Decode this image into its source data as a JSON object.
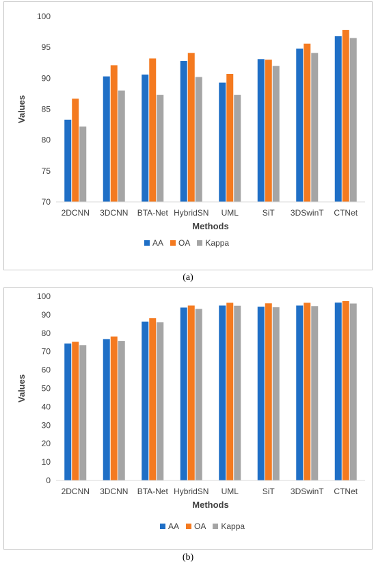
{
  "colors": {
    "AA": "#1f6fc6",
    "OA": "#f47a20",
    "Kappa": "#a5a5a5"
  },
  "captions": {
    "a": "(a)",
    "b": "(b)"
  },
  "chart_data": [
    {
      "type": "bar",
      "categories": [
        "2DCNN",
        "3DCNN",
        "BTA-Net",
        "HybridSN",
        "UML",
        "SiT",
        "3DSwinT",
        "CTNet"
      ],
      "series": [
        {
          "name": "AA",
          "values": [
            83.3,
            90.3,
            90.6,
            92.8,
            89.3,
            93.1,
            94.8,
            96.8
          ]
        },
        {
          "name": "OA",
          "values": [
            86.7,
            92.1,
            93.2,
            94.1,
            90.7,
            93.0,
            95.6,
            97.8
          ]
        },
        {
          "name": "Kappa",
          "values": [
            82.2,
            88.0,
            87.3,
            90.2,
            87.3,
            92.0,
            94.1,
            96.5
          ]
        }
      ],
      "xlabel": "Methods",
      "ylabel": "Values",
      "ylim": [
        70,
        100
      ],
      "yticks": [
        70,
        75,
        80,
        85,
        90,
        95,
        100
      ],
      "grid": false,
      "legend": "bottom"
    },
    {
      "type": "bar",
      "categories": [
        "2DCNN",
        "3DCNN",
        "BTA-Net",
        "HybridSN",
        "UML",
        "SiT",
        "3DSwinT",
        "CTNet"
      ],
      "series": [
        {
          "name": "AA",
          "values": [
            74.4,
            76.8,
            86.3,
            93.9,
            95.0,
            94.4,
            95.0,
            96.6
          ]
        },
        {
          "name": "OA",
          "values": [
            75.3,
            78.2,
            88.1,
            95.0,
            96.5,
            96.2,
            96.5,
            97.4
          ]
        },
        {
          "name": "Kappa",
          "values": [
            73.5,
            75.8,
            85.9,
            93.2,
            94.9,
            94.1,
            94.7,
            96.1
          ]
        }
      ],
      "xlabel": "Methods",
      "ylabel": "Values",
      "ylim": [
        0,
        100
      ],
      "yticks": [
        0,
        10,
        20,
        30,
        40,
        50,
        60,
        70,
        80,
        90,
        100
      ],
      "grid": false,
      "legend": "bottom"
    }
  ]
}
